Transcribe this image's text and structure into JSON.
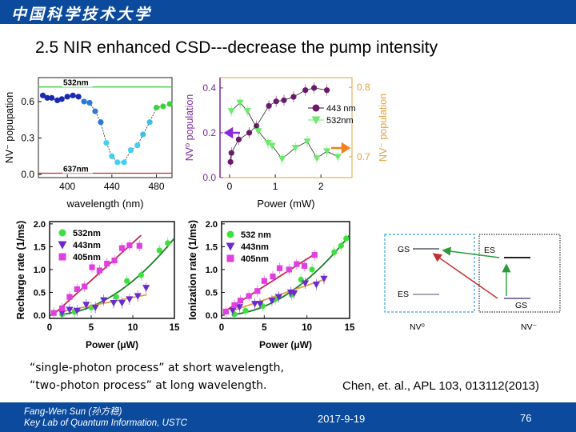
{
  "header": {
    "logo_text": "中国科学技术大学",
    "bar_color": "#0b4a9c"
  },
  "title": "2.5 NIR enhanced CSD---decrease the pump intensity",
  "chart_data": [
    {
      "type": "scatter",
      "xlabel": "wavelength (nm)",
      "ylabel": "NV⁻ popupation",
      "xlim": [
        374,
        494
      ],
      "ylim": [
        -0.026,
        0.797
      ],
      "xticks": [
        400,
        440,
        480
      ],
      "yticks": [
        0.0,
        0.3,
        0.6
      ],
      "ytick_labels": [
        "0.0",
        "0.3",
        "0.6"
      ],
      "grid": false,
      "reference_lines": [
        {
          "name": "532nm",
          "y": 0.72,
          "color": "#3ecf3e"
        },
        {
          "name": "637nm",
          "y": 0.01,
          "color": "#c0282a"
        }
      ],
      "series": [
        {
          "x": [
            378,
            382,
            386,
            391,
            395,
            400,
            405,
            410,
            415,
            420,
            425,
            430,
            435,
            440,
            445,
            451,
            457,
            463,
            468,
            474,
            480,
            486,
            492
          ],
          "y": [
            0.65,
            0.63,
            0.63,
            0.61,
            0.62,
            0.64,
            0.65,
            0.64,
            0.6,
            0.59,
            0.52,
            0.43,
            0.26,
            0.15,
            0.1,
            0.1,
            0.2,
            0.24,
            0.33,
            0.43,
            0.55,
            0.56,
            0.58
          ]
        }
      ]
    },
    {
      "type": "line",
      "xlabel": "Power (mW)",
      "ylabel": "NV⁰ population",
      "ylabel_right": "NV⁻ population",
      "xlim": [
        -0.21,
        2.68
      ],
      "ylim": [
        0,
        0.446
      ],
      "ylim_right": [
        0.67,
        0.814
      ],
      "xticks": [
        0,
        1,
        2
      ],
      "yticks": [
        0.0,
        0.2,
        0.4
      ],
      "ytick_labels": [
        "0.0",
        "0.2",
        "0.4"
      ],
      "yticks_right": [
        0.7,
        0.8
      ],
      "ytick_labels_right": [
        "0.7",
        "0.8"
      ],
      "left_axis_color": "#7a2a9a",
      "right_axis_color": "#e0a040",
      "legend_position": "upper-right",
      "series": [
        {
          "name": "443 nm",
          "axis": "left",
          "color": "#6a1a6a",
          "x": [
            0.02,
            0.04,
            0.2,
            0.43,
            0.59,
            0.86,
            1.02,
            1.19,
            1.4,
            1.66,
            1.85,
            2.13
          ],
          "y": [
            0.07,
            0.11,
            0.17,
            0.2,
            0.23,
            0.32,
            0.34,
            0.345,
            0.36,
            0.39,
            0.4,
            0.39
          ]
        },
        {
          "name": "532nm",
          "axis": "right",
          "color": "#6ee86e",
          "x": [
            0.04,
            0.23,
            0.39,
            0.63,
            0.84,
            0.93,
            1.15,
            1.44,
            1.7,
            1.91,
            2.13,
            2.37
          ],
          "y": [
            0.766,
            0.778,
            0.766,
            0.737,
            0.72,
            0.716,
            0.697,
            0.713,
            0.722,
            0.698,
            0.708,
            0.7
          ]
        }
      ]
    },
    {
      "type": "scatter",
      "xlabel": "Power (μW)",
      "ylabel": "Recharge rate (1/ms)",
      "xlim": [
        0,
        15
      ],
      "ylim": [
        -0.07,
        2.05
      ],
      "xticks": [
        0,
        5,
        10,
        15
      ],
      "yticks": [
        0.0,
        0.5,
        1.0,
        1.5,
        2.0
      ],
      "ytick_labels": [
        "0.0",
        "0.5",
        "1.0",
        "1.5",
        "2.0"
      ],
      "legend_position": "upper-left",
      "series": [
        {
          "name": "532nm",
          "marker": "circle",
          "color": "#3ee03e",
          "fit_color": "#1a7a2a",
          "fit": "quadratic",
          "fit_coef": 0.0075,
          "fit_range": [
            1.5,
            15
          ],
          "x": [
            1.5,
            3.0,
            5.0,
            8.0,
            9.3,
            11.0,
            13.2,
            14.2
          ],
          "y": [
            0.02,
            0.07,
            0.17,
            0.4,
            0.75,
            0.88,
            1.42,
            1.58
          ]
        },
        {
          "name": "443nm",
          "marker": "triangle-down",
          "color": "#6a2ad0",
          "fit_color": "#e0a040",
          "fit": "linear",
          "fit_range": [
            1.2,
            11.7
          ],
          "fit_values": [
            0.07,
            0.45
          ],
          "x": [
            1.5,
            2.4,
            3.3,
            4.4,
            5.5,
            6.5,
            7.7,
            8.7,
            9.6,
            10.6,
            11.6
          ],
          "y": [
            0.05,
            0.12,
            0.1,
            0.23,
            0.17,
            0.33,
            0.27,
            0.27,
            0.35,
            0.42,
            0.6
          ]
        },
        {
          "name": "405nm",
          "marker": "square",
          "color": "#e040e0",
          "fit_color": "#c0284a",
          "fit": "linear",
          "fit_range": [
            0.8,
            11
          ],
          "fit_values": [
            0.07,
            1.75
          ],
          "x": [
            0.5,
            1.5,
            2.4,
            3.3,
            4.2,
            5.1,
            6.0,
            6.9,
            7.8,
            8.7,
            9.6,
            10.8
          ],
          "y": [
            0.05,
            0.15,
            0.4,
            0.57,
            0.63,
            1.05,
            0.98,
            1.13,
            1.2,
            1.47,
            1.53,
            1.52
          ]
        }
      ]
    },
    {
      "type": "scatter",
      "xlabel": "Power (μW)",
      "ylabel": "Ionization rate (1/ms)",
      "xlim": [
        0,
        15
      ],
      "ylim": [
        -0.07,
        2.05
      ],
      "xticks": [
        0,
        5,
        10,
        15
      ],
      "yticks": [
        0.0,
        0.5,
        1.0,
        1.5,
        2.0
      ],
      "ytick_labels": [
        "0.0",
        "0.5",
        "1.0",
        "1.5",
        "2.0"
      ],
      "legend_position": "upper-left",
      "series": [
        {
          "name": "532 nm",
          "marker": "circle",
          "color": "#3ee03e",
          "fit_color": "#1a7a2a",
          "fit": "quadratic",
          "fit_coef": 0.0078,
          "fit_range": [
            1.5,
            15
          ],
          "x": [
            1.5,
            2.8,
            4.8,
            6.3,
            8.2,
            9.3,
            10.6,
            13.2,
            14.0,
            14.6
          ],
          "y": [
            0.02,
            0.1,
            0.2,
            0.35,
            0.45,
            0.78,
            1.0,
            1.38,
            1.52,
            1.68
          ]
        },
        {
          "name": "443nm",
          "marker": "triangle-down",
          "color": "#6a2ad0",
          "fit_color": "#e0a040",
          "fit": "linear",
          "fit_range": [
            1.3,
            12
          ],
          "fit_values": [
            0.1,
            0.78
          ],
          "x": [
            1.3,
            2.1,
            3.9,
            4.5,
            5.9,
            6.7,
            8.1,
            8.5,
            9.8,
            11.1,
            12.0
          ],
          "y": [
            0.1,
            0.18,
            0.25,
            0.25,
            0.32,
            0.4,
            0.5,
            0.48,
            0.7,
            0.67,
            0.8
          ]
        },
        {
          "name": "405nm",
          "marker": "square",
          "color": "#e040e0",
          "fit_color": "#c0284a",
          "fit": "linear",
          "fit_range": [
            0.5,
            11
          ],
          "fit_values": [
            0.1,
            1.35
          ],
          "x": [
            0.5,
            1.5,
            2.2,
            3.2,
            4.2,
            5.0,
            6.0,
            6.8,
            7.9,
            8.8,
            9.7,
            10.9
          ],
          "y": [
            0.08,
            0.22,
            0.32,
            0.42,
            0.53,
            0.75,
            0.85,
            1.03,
            1.0,
            1.12,
            1.08,
            1.32
          ]
        }
      ]
    }
  ],
  "diagram": {
    "nv0_label": "NV⁰",
    "nvminus_label": "NV⁻",
    "nv0_gs": "GS",
    "nv0_es": "ES",
    "nvm_es": "ES",
    "nvm_gs": "GS"
  },
  "caption": {
    "line1": "“single-photon process” at short wavelength,",
    "line2": "“two-photon process” at long wavelength."
  },
  "reference": "Chen, et. al., APL  103, 013112(2013)",
  "footer": {
    "author": "Fang-Wen Sun (孙方稳)",
    "affiliation": "Key Lab of Quantum Information, USTC",
    "date": "2017-9-19",
    "page": "76"
  }
}
